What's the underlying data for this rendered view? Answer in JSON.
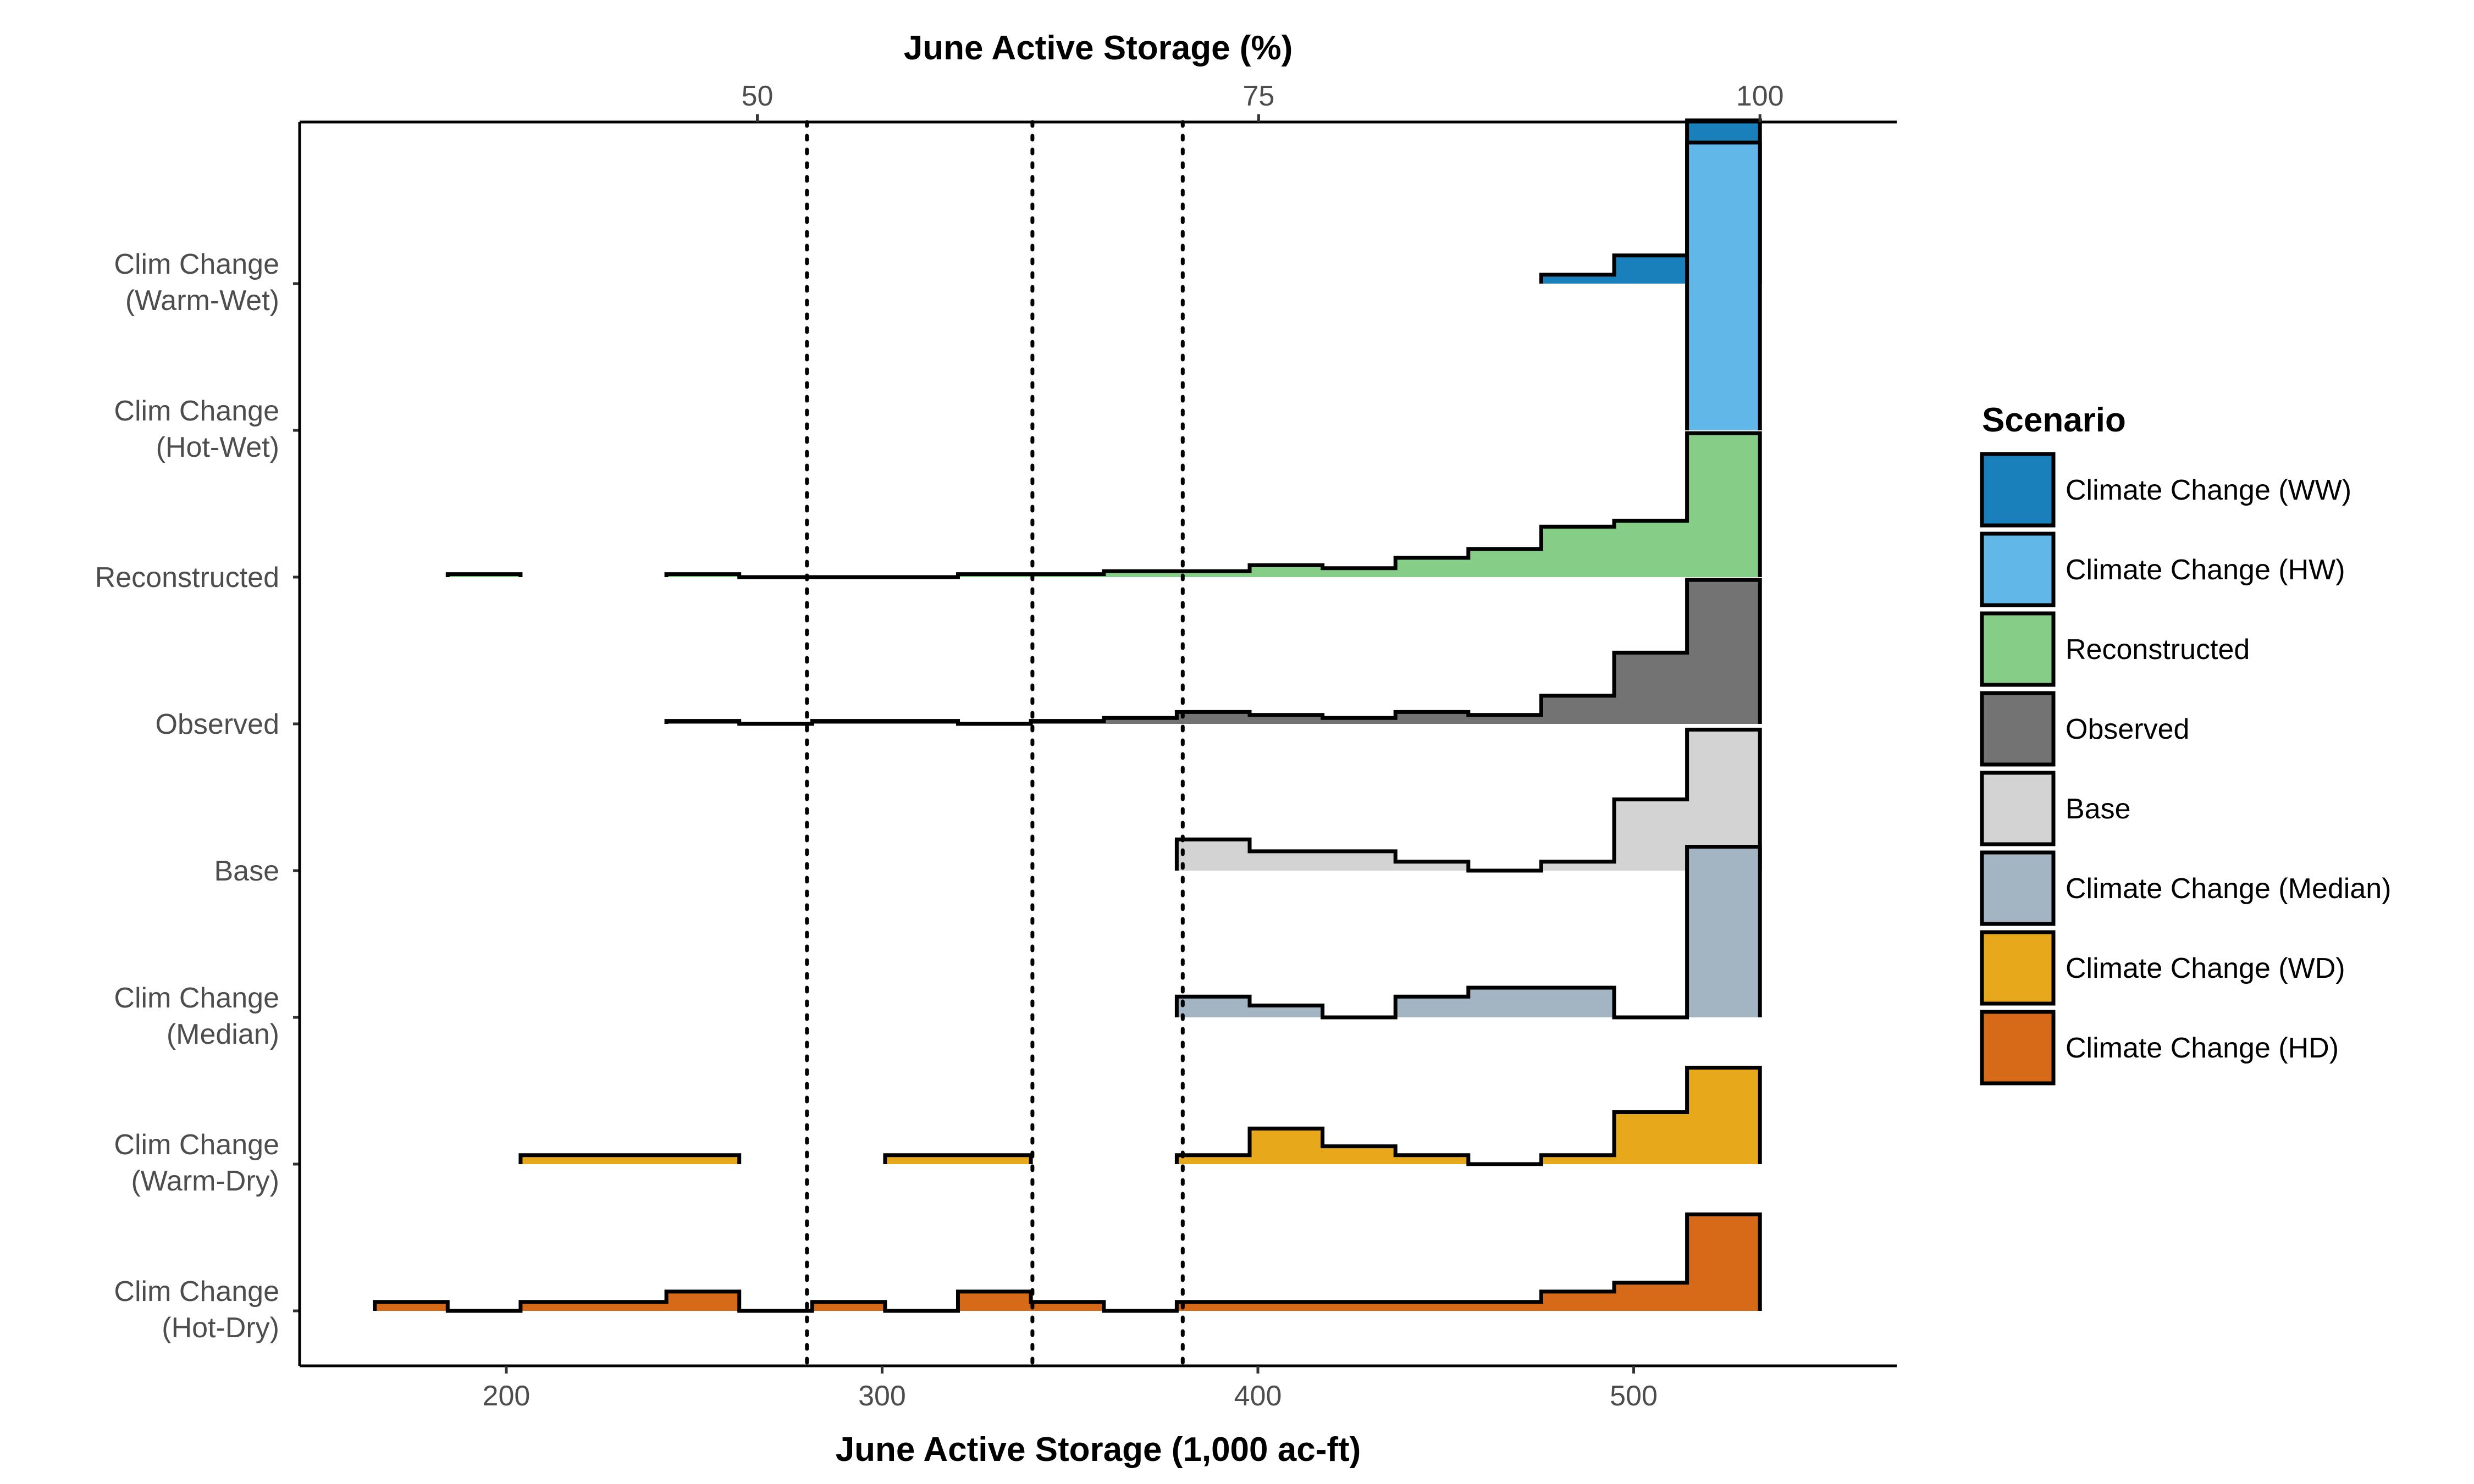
{
  "chart_data": {
    "type": "ridgeline-histogram",
    "xlabel": "June Active Storage (1,000 ac-ft)",
    "x2label": "June Active Storage (%)",
    "x_ticks": [
      200,
      300,
      400,
      500
    ],
    "x2_ticks": [
      50,
      75,
      100
    ],
    "xlim": [
      145,
      570
    ],
    "bin_edges": [
      165,
      184.4,
      203.8,
      223.2,
      242.6,
      262,
      281.4,
      300.8,
      320.2,
      339.6,
      359,
      378.4,
      397.8,
      417.2,
      436.6,
      456,
      475.4,
      494.8,
      514.2,
      533.6
    ],
    "reference_lines_x": [
      280,
      340,
      380
    ],
    "rows": [
      {
        "label_lines": [
          "Clim Change",
          "(Hot-Dry)"
        ],
        "color": "#D66A19",
        "values": [
          0.06,
          0,
          0.06,
          0.06,
          0.13,
          0,
          0.06,
          0,
          0.13,
          0.06,
          0,
          0.06,
          0.06,
          0.06,
          0.06,
          0.06,
          0.13,
          0.19,
          0.65
        ],
        "segments": [
          [
            0,
            18
          ]
        ]
      },
      {
        "label_lines": [
          "Clim Change",
          "(Warm-Dry)"
        ],
        "color": "#E7A81B",
        "values": [
          0,
          0,
          0.06,
          0.06,
          0.06,
          0,
          0,
          0.06,
          0.06,
          0,
          0,
          0.06,
          0.24,
          0.12,
          0.06,
          0,
          0.06,
          0.35,
          0.65
        ],
        "segments": [
          [
            2,
            4
          ],
          [
            7,
            8
          ],
          [
            11,
            18
          ]
        ]
      },
      {
        "label_lines": [
          "Clim Change",
          "(Median)"
        ],
        "color": "#A3B5C2",
        "values": [
          0,
          0,
          0,
          0,
          0,
          0,
          0,
          0,
          0,
          0,
          0,
          0.14,
          0.08,
          0,
          0.14,
          0.2,
          0.2,
          0,
          1.15
        ],
        "segments": [
          [
            11,
            18
          ]
        ]
      },
      {
        "label_lines": [
          "Base"
        ],
        "color": "#D3D3D3",
        "values": [
          0,
          0,
          0,
          0,
          0,
          0,
          0,
          0,
          0,
          0,
          0,
          0.21,
          0.13,
          0.13,
          0.06,
          0,
          0.06,
          0.48,
          0.95
        ],
        "segments": [
          [
            11,
            18
          ]
        ]
      },
      {
        "label_lines": [
          "Observed"
        ],
        "color": "#737373",
        "values": [
          0,
          0,
          0,
          0,
          0.02,
          0,
          0.02,
          0.02,
          0,
          0.02,
          0.04,
          0.08,
          0.06,
          0.04,
          0.08,
          0.06,
          0.19,
          0.48,
          0.97
        ],
        "segments": [
          [
            4,
            18
          ]
        ]
      },
      {
        "label_lines": [
          "Reconstructed"
        ],
        "color": "#86CE88",
        "values": [
          0,
          0.02,
          0,
          0,
          0.02,
          0,
          0,
          0,
          0.02,
          0.02,
          0.04,
          0.04,
          0.08,
          0.06,
          0.13,
          0.19,
          0.34,
          0.38,
          0.97
        ],
        "segments": [
          [
            1,
            1
          ],
          [
            4,
            18
          ]
        ]
      },
      {
        "label_lines": [
          "Clim Change",
          "(Hot-Wet)"
        ],
        "color": "#62B7E9",
        "values": [
          0,
          0,
          0,
          0,
          0,
          0,
          0,
          0,
          0,
          0,
          0,
          0,
          0,
          0,
          0,
          0,
          0,
          0,
          1.94
        ],
        "segments": [
          [
            18,
            18
          ]
        ]
      },
      {
        "label_lines": [
          "Clim Change",
          "(Warm-Wet)"
        ],
        "color": "#1A80BB",
        "values": [
          0,
          0,
          0,
          0,
          0,
          0,
          0,
          0,
          0,
          0,
          0,
          0,
          0,
          0,
          0,
          0,
          0.06,
          0.19,
          1.1
        ],
        "segments": [
          [
            16,
            18
          ]
        ]
      }
    ],
    "legend": {
      "title": "Scenario",
      "placement": "right",
      "items": [
        {
          "label": "Climate Change (WW)",
          "color": "#1A80BB"
        },
        {
          "label": "Climate Change (HW)",
          "color": "#62B7E9"
        },
        {
          "label": "Reconstructed",
          "color": "#86CE88"
        },
        {
          "label": "Observed",
          "color": "#737373"
        },
        {
          "label": "Base",
          "color": "#D3D3D3"
        },
        {
          "label": "Climate Change (Median)",
          "color": "#A3B5C2"
        },
        {
          "label": "Climate Change (WD)",
          "color": "#E7A81B"
        },
        {
          "label": "Climate Change (HD)",
          "color": "#D66A19"
        }
      ]
    }
  }
}
